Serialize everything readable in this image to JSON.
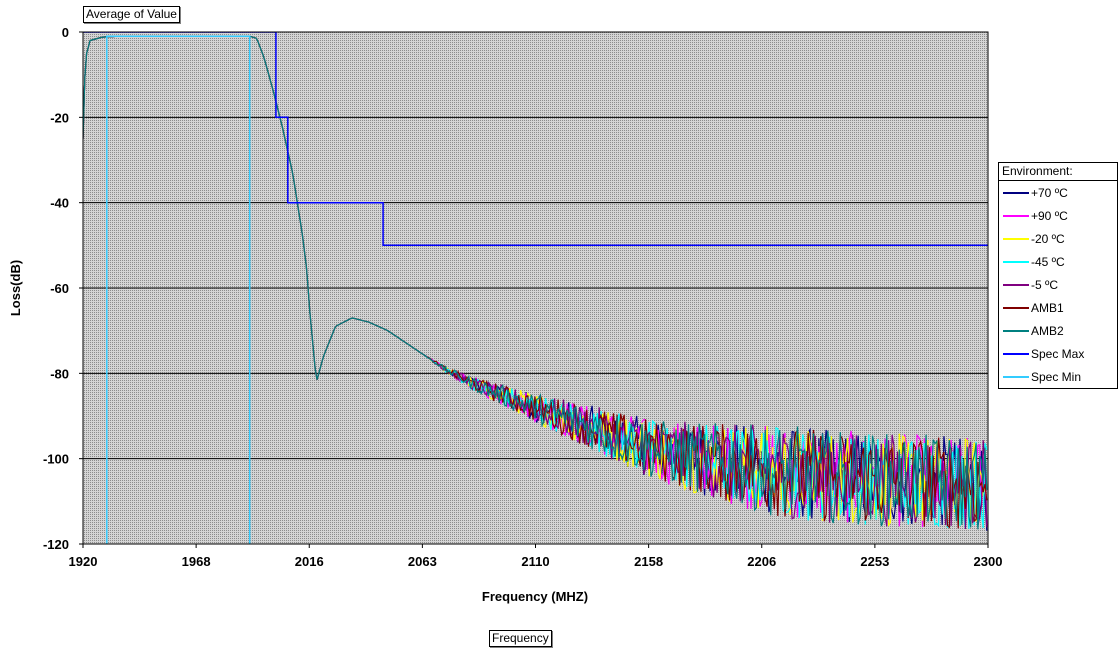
{
  "page_field_label": "Average of Value",
  "category_field_label": "Frequency",
  "legend": {
    "title": "Environment:",
    "items": [
      {
        "label": "+70 ºC",
        "color": "#000080"
      },
      {
        "label": "+90 ºC",
        "color": "#ff00ff"
      },
      {
        "label": "-20 ºC",
        "color": "#ffff00"
      },
      {
        "label": "-45 ºC",
        "color": "#00ffff"
      },
      {
        "label": "-5 ºC",
        "color": "#800080"
      },
      {
        "label": "AMB1",
        "color": "#800000"
      },
      {
        "label": "AMB2",
        "color": "#008080"
      },
      {
        "label": "Spec Max",
        "color": "#0000ff"
      },
      {
        "label": "Spec Min",
        "color": "#33ccff"
      }
    ]
  },
  "chart_data": {
    "type": "line",
    "xlabel": "Frequency (MHZ)",
    "ylabel": "Loss(dB)",
    "x_ticks": [
      "1920",
      "1968",
      "2016",
      "2063",
      "2110",
      "2158",
      "2206",
      "2253",
      "2300"
    ],
    "y_ticks": [
      "0",
      "-20",
      "-40",
      "-60",
      "-80",
      "-100",
      "-120"
    ],
    "xlim": [
      1920,
      2300
    ],
    "ylim": [
      -120,
      0
    ],
    "plot_background": "#c0c0c0",
    "gridlines": "horizontal",
    "spec_max": {
      "name": "Spec Max",
      "x": [
        1920,
        2001,
        2001,
        2006,
        2006,
        2046,
        2046,
        2300
      ],
      "y": [
        0,
        0,
        -20,
        -20,
        -40,
        -40,
        -50,
        -50
      ]
    },
    "spec_min": {
      "name": "Spec Min",
      "x": [
        1930,
        1930,
        1990,
        1990
      ],
      "y": [
        -120,
        -1,
        -1,
        -120
      ]
    },
    "measured_series_names": [
      "+70 ºC",
      "+90 ºC",
      "-20 ºC",
      "-45 ºC",
      "-5 ºC",
      "AMB1",
      "AMB2"
    ],
    "measured_profile": {
      "x": [
        1920,
        1921,
        1923,
        1928,
        1935,
        1990,
        1993,
        1996,
        2000,
        2004,
        2008,
        2012,
        2014,
        2015,
        2016,
        2018,
        2021,
        2026,
        2033,
        2040,
        2048,
        2056,
        2064,
        2072,
        2082,
        2095,
        2110,
        2125,
        2140,
        2160,
        2180,
        2200,
        2230,
        2260,
        2300
      ],
      "y": [
        -25,
        -6,
        -2,
        -1.2,
        -1,
        -1,
        -1.5,
        -6,
        -14,
        -23,
        -33,
        -47,
        -56,
        -64,
        -70,
        -82,
        -76,
        -69,
        -67,
        -68,
        -70,
        -73,
        -76,
        -79,
        -82,
        -85,
        -88,
        -91,
        -94,
        -98,
        -100,
        -102,
        -104,
        -105,
        -106
      ]
    },
    "noise_floor_start_x": 2063,
    "noise_band_peak_to_peak_db": 22
  }
}
